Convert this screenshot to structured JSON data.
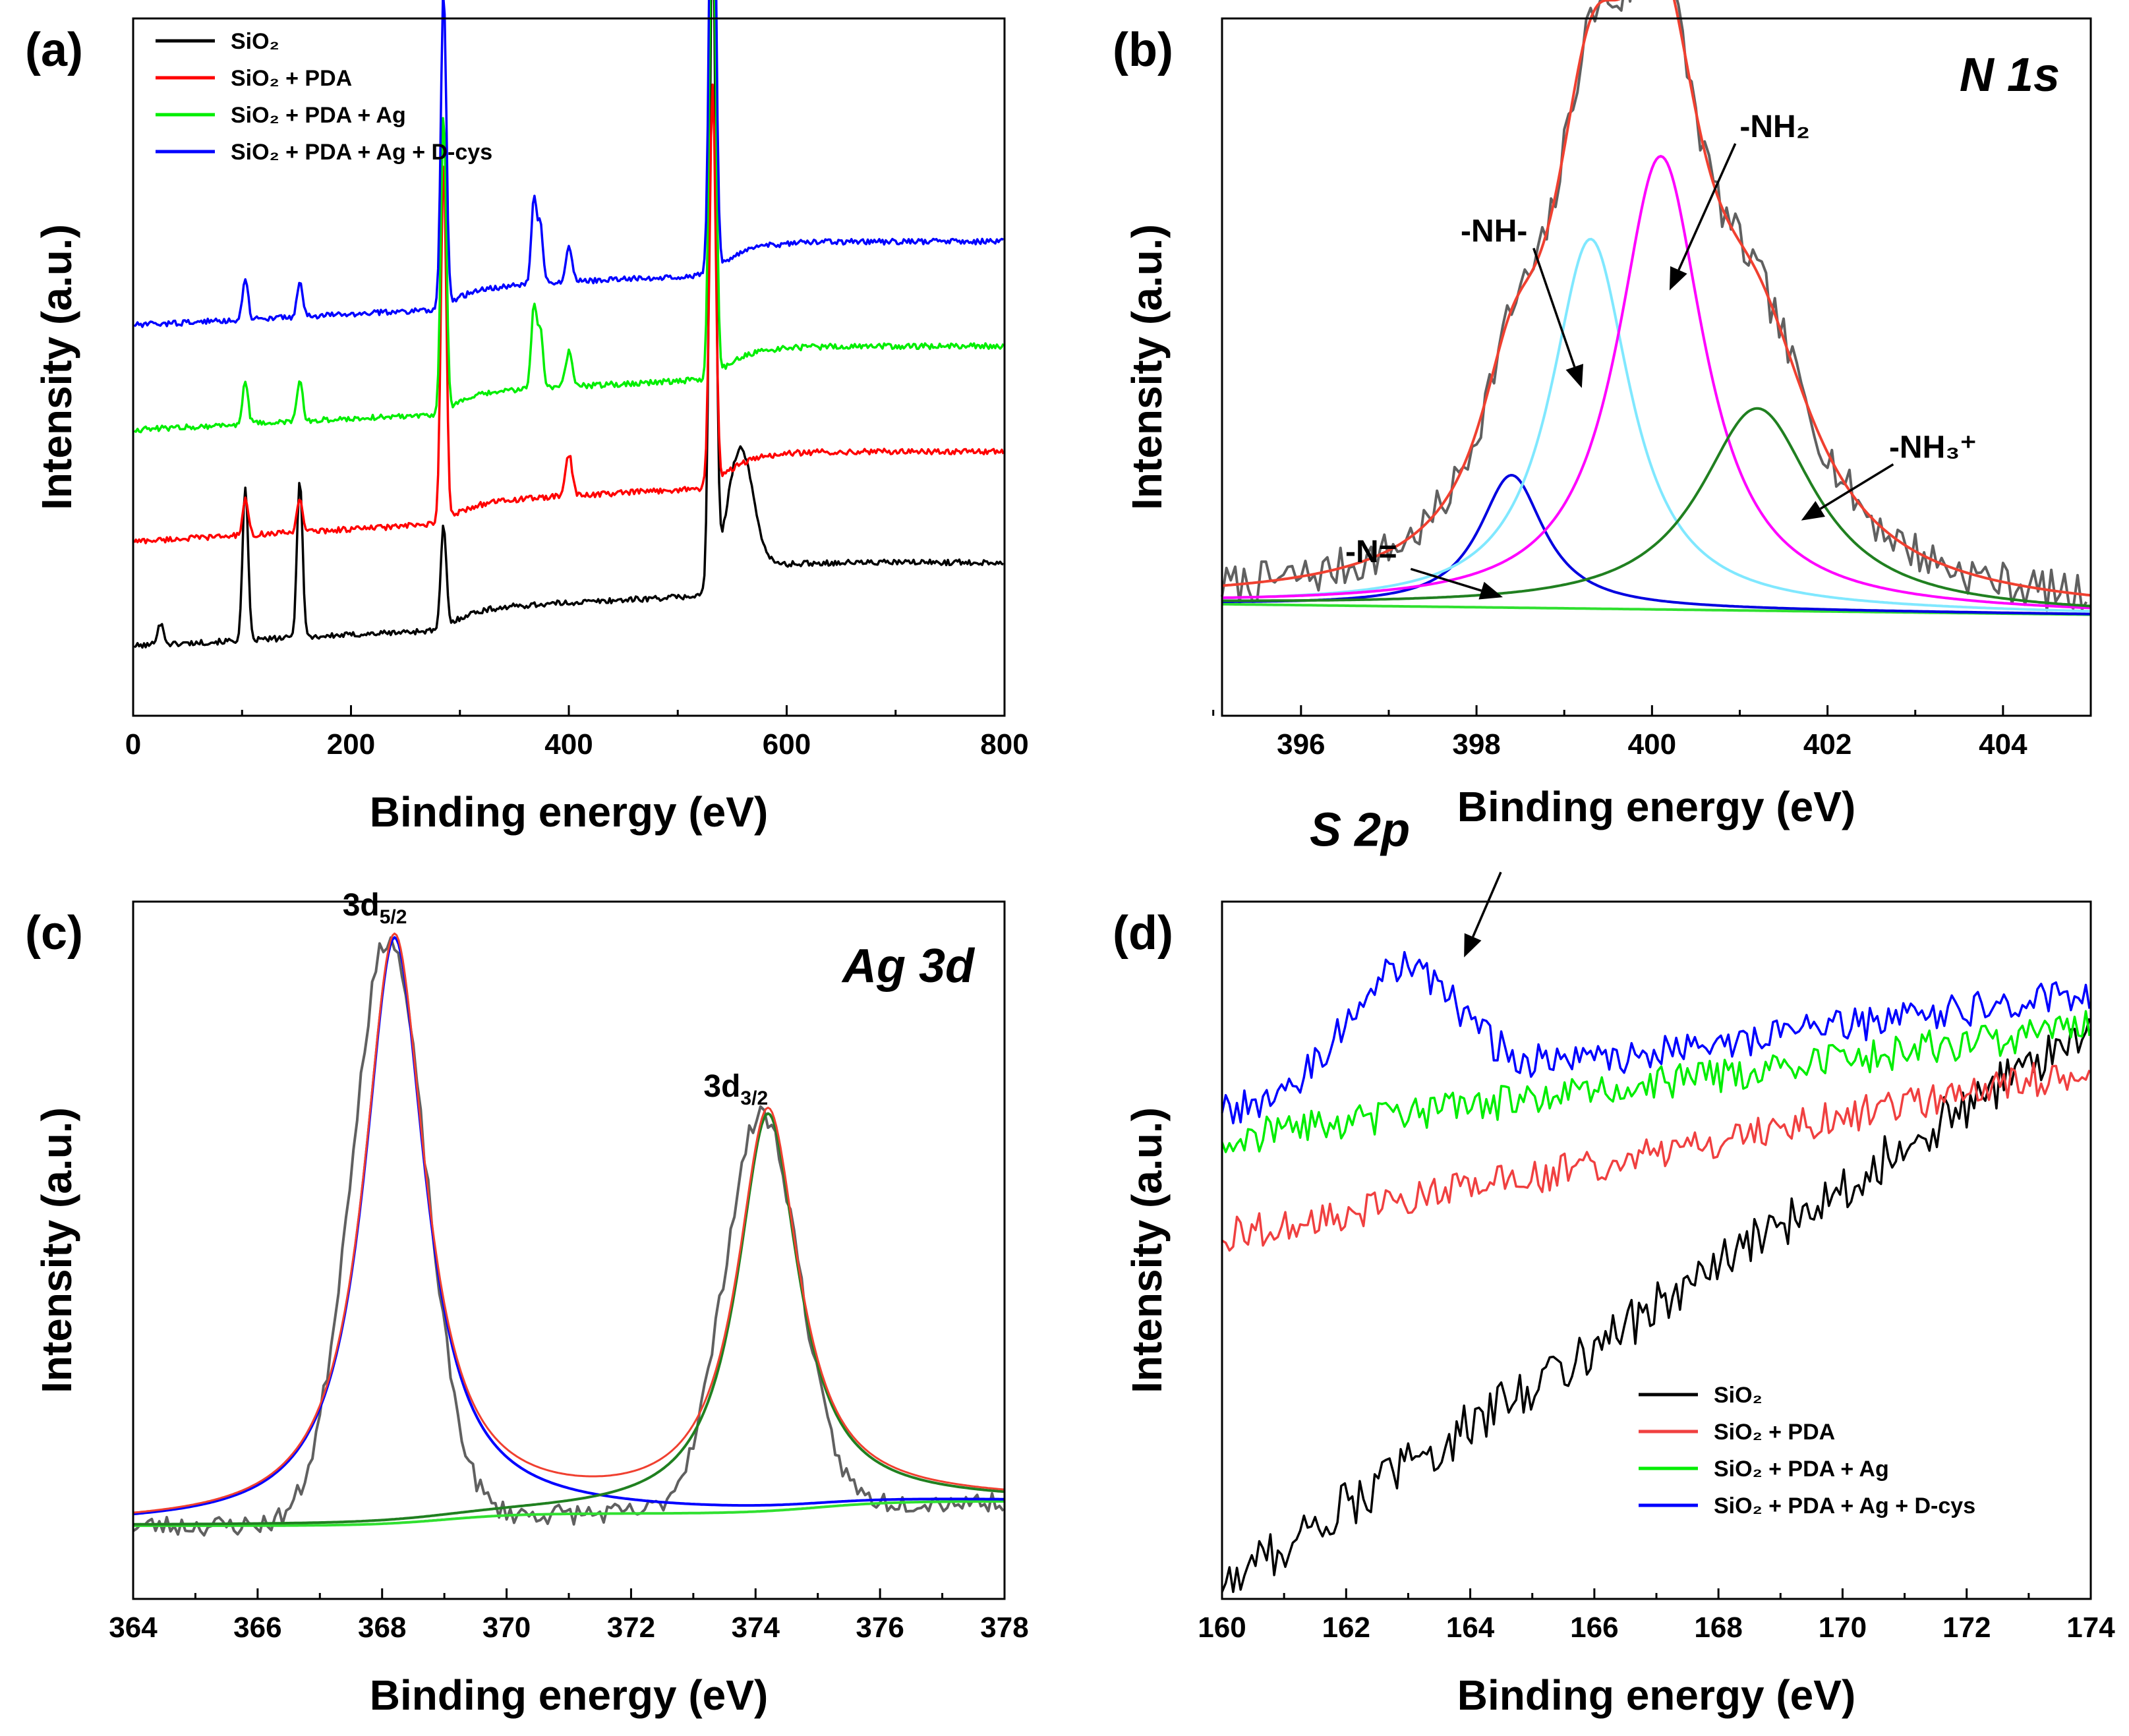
{
  "figure": {
    "legend_labels": [
      {
        "label": "SiO₂",
        "color": "#000000"
      },
      {
        "label": "SiO₂ + PDA",
        "color": "#ff0000"
      },
      {
        "label": "SiO₂ + PDA + Ag",
        "color": "#00ee00"
      },
      {
        "label": "SiO₂ + PDA + Ag + D-cys",
        "color": "#0000ff"
      }
    ],
    "fit_envelope_color": "#f04030",
    "raw_data_color": "#606060"
  },
  "chart_data": [
    {
      "panel": "(a)",
      "type": "line",
      "title": "",
      "xlabel": "Binding energy (eV)",
      "ylabel": "Intensity (a.u.)",
      "xlim": [
        0,
        800
      ],
      "xticks": [
        0,
        200,
        400,
        600,
        800
      ],
      "yticks": "none",
      "series": [
        {
          "name": "SiO₂",
          "color": "#000000",
          "baseline": 0.1,
          "end_level": 0.2,
          "peaks": [
            [
              25,
              0.03,
              3
            ],
            [
              103,
              0.22,
              2.5
            ],
            [
              153,
              0.23,
              2.5
            ],
            [
              285,
              0.15,
              2.5
            ],
            [
              532,
              0.96,
              2.8
            ],
            [
              557,
              0.18,
              12
            ]
          ]
        },
        {
          "name": "SiO₂ + PDA",
          "color": "#ff0000",
          "baseline": 0.25,
          "end_level": 0.36,
          "peaks": [
            [
              103,
              0.05,
              2.5
            ],
            [
              153,
              0.05,
              2.5
            ],
            [
              285,
              0.52,
              2.5
            ],
            [
              400,
              0.06,
              3
            ],
            [
              532,
              0.58,
              2.8
            ]
          ]
        },
        {
          "name": "SiO₂ + PDA + Ag",
          "color": "#00ee00",
          "baseline": 0.41,
          "end_level": 0.51,
          "peaks": [
            [
              103,
              0.06,
              2.5
            ],
            [
              153,
              0.06,
              2.5
            ],
            [
              285,
              0.43,
              2.5
            ],
            [
              368,
              0.12,
              2.5
            ],
            [
              374,
              0.08,
              2.5
            ],
            [
              400,
              0.05,
              3
            ],
            [
              532,
              0.76,
              2.8
            ]
          ]
        },
        {
          "name": "SiO₂ + PDA + Ag + D-cys",
          "color": "#0000ff",
          "baseline": 0.56,
          "end_level": 0.66,
          "peaks": [
            [
              103,
              0.06,
              2.5
            ],
            [
              153,
              0.05,
              2.5
            ],
            [
              285,
              0.46,
              2.5
            ],
            [
              368,
              0.12,
              2.5
            ],
            [
              374,
              0.08,
              2.5
            ],
            [
              400,
              0.05,
              3
            ],
            [
              532,
              0.79,
              2.8
            ]
          ]
        }
      ]
    },
    {
      "panel": "(b)",
      "type": "line",
      "title": "N 1s",
      "xlabel": "Binding energy (eV)",
      "ylabel": "Intensity (a.u.)",
      "xlim": [
        395.1,
        405
      ],
      "xticks": [
        396,
        398,
        400,
        402,
        404
      ],
      "components": [
        {
          "name": "-N=",
          "center": 398.4,
          "height": 0.19,
          "fwhm": 0.9,
          "color": "#0000e0"
        },
        {
          "name": "-NH-",
          "center": 399.3,
          "height": 0.53,
          "fwhm": 1.1,
          "color": "#80e8ff"
        },
        {
          "name": "-NH₂",
          "center": 400.1,
          "height": 0.65,
          "fwhm": 1.2,
          "color": "#ff00ff"
        },
        {
          "name": "-NH₃⁺",
          "center": 401.2,
          "height": 0.29,
          "fwhm": 1.6,
          "color": "#208020"
        }
      ],
      "background": {
        "start": 0.16,
        "end": 0.145,
        "color": "#30e030"
      },
      "annotations": [
        {
          "text": "-N=",
          "x": 396.8,
          "y": 0.22,
          "arrow_to": [
            398.3,
            0.17
          ]
        },
        {
          "text": "-NH-",
          "x": 398.2,
          "y": 0.68,
          "arrow_to": [
            399.2,
            0.47
          ]
        },
        {
          "text": "-NH₂",
          "x": 401.4,
          "y": 0.83,
          "arrow_to": [
            400.2,
            0.61
          ]
        },
        {
          "text": "-NH₃⁺",
          "x": 403.2,
          "y": 0.37,
          "arrow_to": [
            401.7,
            0.28
          ]
        }
      ]
    },
    {
      "panel": "(c)",
      "type": "line",
      "title": "Ag 3d",
      "xlabel": "Binding energy (eV)",
      "ylabel": "Intensity (a.u.)",
      "xlim": [
        364,
        378
      ],
      "xticks": [
        364,
        366,
        368,
        370,
        372,
        374,
        376,
        378
      ],
      "peaks": [
        {
          "name": "3d5/2",
          "center": 368.2,
          "height": 0.84,
          "fwhm": 1.2,
          "color": "#0000ff"
        },
        {
          "name": "3d3/2",
          "center": 374.2,
          "height": 0.57,
          "fwhm": 1.2,
          "color": "#208020"
        }
      ],
      "background": {
        "low": 0.105,
        "high": 0.14,
        "step1": 369.0,
        "step2": 375.0,
        "color": "#30e030"
      },
      "peak_labels": [
        {
          "main": "3d",
          "sub": "5/2",
          "x": 368.2,
          "y": 0.98
        },
        {
          "main": "3d",
          "sub": "3/2",
          "x": 374.0,
          "y": 0.72
        }
      ]
    },
    {
      "panel": "(d)",
      "type": "line",
      "title": "S 2p",
      "xlabel": "Binding energy (eV)",
      "ylabel": "Intensity (a.u.)",
      "xlim": [
        160,
        174
      ],
      "xticks": [
        160,
        162,
        164,
        166,
        168,
        170,
        172,
        174
      ],
      "series": [
        {
          "name": "SiO₂",
          "color": "#000000",
          "start": 0.02,
          "end": 0.82,
          "noise": 0.035
        },
        {
          "name": "SiO₂ + PDA",
          "color": "#f04040",
          "start": 0.52,
          "end": 0.76,
          "noise": 0.025
        },
        {
          "name": "SiO₂ + PDA + Ag",
          "color": "#00ee00",
          "start": 0.66,
          "end": 0.82,
          "noise": 0.025
        },
        {
          "name": "SiO₂ + PDA + Ag + D-cys",
          "color": "#0000ff",
          "start": 0.7,
          "end": 0.87,
          "noise": 0.025,
          "bump": [
            162.9,
            0.17,
            0.9
          ]
        }
      ],
      "annotations": [
        {
          "text": "S 2p",
          "x": 162.9,
          "y": 1.08,
          "arrow_to": [
            163.9,
            0.92
          ]
        }
      ]
    }
  ]
}
